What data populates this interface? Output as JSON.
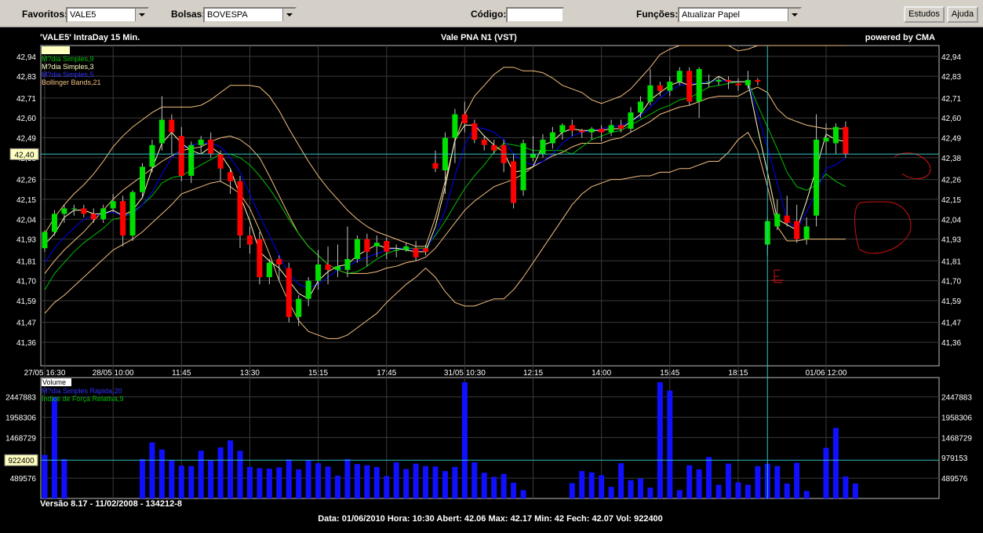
{
  "toolbar": {
    "favoritos_label": "Favoritos:",
    "favoritos_value": "VALE5",
    "bolsas_label": "Bolsas:",
    "bolsas_value": "BOVESPA",
    "codigo_label": "Código:",
    "codigo_value": "",
    "funcoes_label": "Funções:",
    "funcoes_value": "Atualizar Papel",
    "estudos_label": "Estudos",
    "ajuda_label": "Ajuda"
  },
  "header": {
    "title_left": "'VALE5'  IntraDay 15 Min.",
    "title_center": "Vale PNA     N1 (VST)",
    "powered": "powered by CMA"
  },
  "legend": {
    "box": "",
    "ma9": "M?dia Simples,9",
    "ma3": "M?dia Simples,3",
    "ma_blue": "M?dia Simples,5",
    "bollinger": "Bollinger Bands,21"
  },
  "volume_legend": {
    "volume": "Volume",
    "blue": "M?dia Simples Rapida,20",
    "green": "Índice de Força Relativa,9"
  },
  "footer": {
    "version": "Versão 8.17 - 11/02/2008 - 134212-8",
    "status": "Data: 01/06/2010  Hora: 10:30  Abert: 42.06  Max:   42.17  Min:   42  Fech:  42.07  Vol: 922400"
  },
  "colors": {
    "up": "#00e000",
    "down": "#ff0000",
    "ma9": "#00c000",
    "ma3": "#ffffc0",
    "ma5": "#0000ff",
    "bollinger": "#f4c080",
    "cursor": "#30c0c0",
    "volume": "#1010ff"
  },
  "chart_data": {
    "type": "candlestick",
    "price_axis_left": [
      "42,94",
      "42,83",
      "42,71",
      "42,60",
      "42,49",
      "42,38",
      "42,26",
      "42,15",
      "42,04",
      "41,93",
      "41,81",
      "41,70",
      "41,59",
      "41,47",
      "41,36"
    ],
    "price_axis_right": [
      "42,94",
      "42,83",
      "42,71",
      "42,60",
      "42,49",
      "42,38",
      "42,26",
      "42,15",
      "42,04",
      "41,93",
      "41,81",
      "41,70",
      "41,59",
      "41,47",
      "41,36"
    ],
    "price_cursor_label": "42,40",
    "price_cursor_value": 42.4,
    "ylim": [
      41.23,
      43.0
    ],
    "x_labels": [
      {
        "label": "27/05 16:30",
        "i": 0
      },
      {
        "label": "28/05 10:00",
        "i": 7
      },
      {
        "label": "11:45",
        "i": 14
      },
      {
        "label": "13:30",
        "i": 21
      },
      {
        "label": "15:15",
        "i": 28
      },
      {
        "label": "17:45",
        "i": 35
      },
      {
        "label": "31/05 10:30",
        "i": 43
      },
      {
        "label": "12:15",
        "i": 50
      },
      {
        "label": "14:00",
        "i": 57
      },
      {
        "label": "15:45",
        "i": 64
      },
      {
        "label": "18:15",
        "i": 71
      },
      {
        "label": "01/06 12:00",
        "i": 80
      }
    ],
    "candles": [
      [
        41.88,
        41.97,
        41.86,
        41.98
      ],
      [
        41.97,
        42.07,
        41.95,
        42.09
      ],
      [
        42.07,
        42.1,
        42.02,
        42.12
      ],
      [
        42.1,
        42.1,
        42.06,
        42.12
      ],
      [
        42.1,
        42.07,
        42.05,
        42.12
      ],
      [
        42.07,
        42.04,
        42.02,
        42.1
      ],
      [
        42.04,
        42.1,
        42.02,
        42.12
      ],
      [
        42.1,
        42.14,
        42.08,
        42.18
      ],
      [
        42.14,
        41.95,
        41.89,
        42.17
      ],
      [
        41.95,
        42.19,
        41.92,
        42.2
      ],
      [
        42.19,
        42.33,
        42.16,
        42.35
      ],
      [
        42.33,
        42.45,
        42.3,
        42.48
      ],
      [
        42.46,
        42.59,
        42.42,
        42.72
      ],
      [
        42.59,
        42.52,
        42.4,
        42.62
      ],
      [
        42.5,
        42.28,
        42.25,
        42.55
      ],
      [
        42.28,
        42.45,
        42.24,
        42.47
      ],
      [
        42.45,
        42.48,
        42.4,
        42.5
      ],
      [
        42.48,
        42.4,
        42.38,
        42.52
      ],
      [
        42.4,
        42.32,
        42.25,
        42.42
      ],
      [
        42.3,
        42.25,
        42.18,
        42.32
      ],
      [
        42.25,
        41.95,
        41.88,
        42.28
      ],
      [
        41.95,
        41.9,
        41.85,
        42.0
      ],
      [
        41.93,
        41.72,
        41.68,
        41.97
      ],
      [
        41.72,
        41.8,
        41.68,
        41.82
      ],
      [
        41.82,
        41.79,
        41.7,
        41.84
      ],
      [
        41.77,
        41.5,
        41.47,
        41.8
      ],
      [
        41.5,
        41.6,
        41.45,
        41.62
      ],
      [
        41.6,
        41.7,
        41.56,
        41.72
      ],
      [
        41.7,
        41.79,
        41.65,
        41.87
      ],
      [
        41.79,
        41.76,
        41.68,
        41.89
      ],
      [
        41.76,
        41.78,
        41.72,
        41.9
      ],
      [
        41.76,
        41.82,
        41.72,
        42.0
      ],
      [
        41.82,
        41.93,
        41.8,
        41.95
      ],
      [
        41.93,
        41.86,
        41.78,
        41.96
      ],
      [
        41.89,
        41.91,
        41.83,
        41.95
      ],
      [
        41.92,
        41.86,
        41.82,
        41.94
      ],
      [
        41.87,
        41.87,
        41.83,
        41.9
      ],
      [
        41.87,
        41.89,
        41.86,
        41.91
      ],
      [
        41.88,
        41.83,
        41.81,
        41.92
      ],
      [
        41.88,
        41.86,
        41.84,
        41.9
      ],
      [
        42.35,
        42.32,
        42.3,
        42.42
      ],
      [
        42.31,
        42.49,
        42.18,
        42.52
      ],
      [
        42.49,
        42.62,
        42.35,
        42.65
      ],
      [
        42.62,
        42.57,
        42.52,
        42.69
      ],
      [
        42.57,
        42.48,
        42.46,
        42.59
      ],
      [
        42.48,
        42.45,
        42.42,
        42.5
      ],
      [
        42.45,
        42.42,
        42.4,
        42.48
      ],
      [
        42.45,
        42.35,
        42.3,
        42.48
      ],
      [
        42.36,
        42.13,
        42.1,
        42.4
      ],
      [
        42.2,
        42.46,
        42.17,
        42.48
      ],
      [
        42.38,
        42.4,
        42.36,
        42.5
      ],
      [
        42.4,
        42.48,
        42.38,
        42.51
      ],
      [
        42.46,
        42.52,
        42.43,
        42.55
      ],
      [
        42.52,
        42.56,
        42.48,
        42.57
      ],
      [
        42.56,
        42.53,
        42.5,
        42.59
      ],
      [
        42.53,
        42.52,
        42.49,
        42.54
      ],
      [
        42.52,
        42.54,
        42.48,
        42.55
      ],
      [
        42.54,
        42.52,
        42.47,
        42.56
      ],
      [
        42.52,
        42.56,
        42.5,
        42.59
      ],
      [
        42.56,
        42.54,
        42.52,
        42.59
      ],
      [
        42.54,
        42.63,
        42.52,
        42.66
      ],
      [
        42.63,
        42.69,
        42.6,
        42.72
      ],
      [
        42.69,
        42.78,
        42.67,
        42.87
      ],
      [
        42.78,
        42.75,
        42.72,
        42.8
      ],
      [
        42.75,
        42.8,
        42.72,
        42.83
      ],
      [
        42.8,
        42.86,
        42.78,
        42.88
      ],
      [
        42.86,
        42.69,
        42.67,
        42.88
      ],
      [
        42.69,
        42.87,
        42.6,
        42.88
      ],
      [
        42.8,
        42.8,
        42.77,
        42.84
      ],
      [
        42.8,
        42.81,
        42.78,
        42.83
      ],
      [
        42.81,
        42.8,
        42.76,
        42.83
      ],
      [
        42.79,
        42.78,
        42.75,
        42.82
      ],
      [
        42.78,
        42.81,
        42.76,
        42.86
      ],
      [
        42.81,
        42.8,
        42.78,
        42.82
      ],
      [
        41.9,
        42.03,
        41.84,
        42.05
      ],
      [
        42.0,
        42.07,
        41.98,
        42.15
      ],
      [
        42.06,
        42.02,
        42.0,
        42.17
      ],
      [
        42.03,
        41.93,
        41.91,
        42.12
      ],
      [
        41.93,
        42.0,
        41.9,
        42.05
      ],
      [
        42.06,
        42.48,
        42.0,
        42.62
      ],
      [
        42.47,
        42.49,
        42.4,
        42.57
      ],
      [
        42.46,
        42.55,
        42.4,
        42.57
      ],
      [
        42.55,
        42.4,
        42.38,
        42.58
      ]
    ],
    "ma9": [
      41.65,
      41.74,
      41.8,
      41.86,
      41.91,
      41.95,
      41.99,
      42.04,
      42.05,
      42.08,
      42.12,
      42.17,
      42.24,
      42.27,
      42.28,
      42.31,
      42.34,
      42.37,
      42.4,
      42.4,
      42.38,
      42.34,
      42.28,
      42.21,
      42.13,
      42.04,
      41.96,
      41.89,
      41.84,
      41.79,
      41.76,
      41.74,
      41.75,
      41.78,
      41.82,
      41.85,
      41.87,
      41.88,
      41.88,
      41.88,
      41.95,
      42.03,
      42.12,
      42.21,
      42.28,
      42.34,
      42.41,
      42.46,
      42.45,
      42.44,
      42.42,
      42.42,
      42.42,
      42.42,
      42.4,
      42.44,
      42.48,
      42.5,
      42.52,
      42.53,
      42.56,
      42.59,
      42.62,
      42.65,
      42.67,
      42.7,
      42.71,
      42.74,
      42.77,
      42.78,
      42.79,
      42.8,
      42.8,
      42.67,
      42.55,
      42.43,
      42.3,
      42.22,
      42.2,
      42.23,
      42.29,
      42.25,
      42.22
    ],
    "ma3": [
      41.9,
      41.96,
      42.05,
      42.09,
      42.09,
      42.07,
      42.07,
      42.09,
      42.06,
      42.09,
      42.16,
      42.32,
      42.46,
      42.52,
      42.46,
      42.42,
      42.4,
      42.44,
      42.4,
      42.32,
      42.17,
      42.03,
      41.86,
      41.81,
      41.77,
      41.7,
      41.63,
      41.6,
      41.7,
      41.75,
      41.78,
      41.79,
      41.84,
      41.87,
      41.9,
      41.88,
      41.88,
      41.87,
      41.86,
      41.86,
      42.0,
      42.22,
      42.48,
      42.56,
      42.56,
      42.5,
      42.45,
      42.41,
      42.3,
      42.31,
      42.33,
      42.45,
      42.47,
      42.52,
      42.54,
      42.53,
      42.53,
      42.53,
      42.54,
      42.54,
      42.58,
      42.62,
      42.7,
      42.74,
      42.78,
      42.8,
      42.78,
      42.79,
      42.79,
      42.83,
      42.8,
      42.8,
      42.8,
      42.54,
      42.3,
      42.04,
      42.01,
      41.98,
      42.14,
      42.32,
      42.51,
      42.48,
      42.47
    ],
    "ma5": [
      41.8,
      41.88,
      41.94,
      41.99,
      42.04,
      42.06,
      42.07,
      42.08,
      42.06,
      42.07,
      42.12,
      42.19,
      42.29,
      42.38,
      42.43,
      42.45,
      42.46,
      42.46,
      42.44,
      42.38,
      42.3,
      42.18,
      42.06,
      41.95,
      41.84,
      41.74,
      41.68,
      41.66,
      41.68,
      41.72,
      41.76,
      41.78,
      41.81,
      41.83,
      41.85,
      41.87,
      41.88,
      41.88,
      41.87,
      41.87,
      41.96,
      42.09,
      42.28,
      42.45,
      42.55,
      42.54,
      42.52,
      42.48,
      42.4,
      42.36,
      42.34,
      42.36,
      42.4,
      42.46,
      42.5,
      42.52,
      42.53,
      42.54,
      42.55,
      42.56,
      42.58,
      42.61,
      42.66,
      42.71,
      42.75,
      42.78,
      42.79,
      42.79,
      42.8,
      42.81,
      42.8,
      42.8,
      42.8,
      42.62,
      42.44,
      42.24,
      42.04,
      41.98,
      42.08,
      42.19,
      42.32,
      42.34,
      42.38
    ],
    "bb_upper": [
      41.96,
      42.05,
      42.12,
      42.18,
      42.23,
      42.29,
      42.36,
      42.44,
      42.5,
      42.55,
      42.59,
      42.63,
      42.66,
      42.66,
      42.66,
      42.66,
      42.67,
      42.7,
      42.74,
      42.78,
      42.78,
      42.78,
      42.77,
      42.72,
      42.64,
      42.54,
      42.45,
      42.36,
      42.28,
      42.21,
      42.15,
      42.09,
      42.04,
      42.0,
      41.97,
      41.95,
      41.93,
      41.91,
      41.89,
      41.89,
      42.05,
      42.25,
      42.47,
      42.62,
      42.72,
      42.78,
      42.84,
      42.88,
      42.88,
      42.86,
      42.86,
      42.85,
      42.82,
      42.78,
      42.76,
      42.74,
      42.7,
      42.68,
      42.7,
      42.72,
      42.76,
      42.82,
      42.88,
      42.95,
      42.98,
      43.0,
      43.02,
      43.04,
      43.06,
      43.08,
      43.02,
      42.97,
      42.98,
      43.12,
      43.25,
      43.3,
      43.3,
      43.3,
      43.3,
      43.3,
      43.3,
      43.3,
      43.3
    ],
    "bb_lower": [
      41.52,
      41.58,
      41.62,
      41.67,
      41.72,
      41.77,
      41.82,
      41.87,
      41.9,
      41.93,
      41.97,
      42.02,
      42.07,
      42.12,
      42.18,
      42.2,
      42.22,
      42.24,
      42.25,
      42.22,
      42.18,
      42.1,
      41.98,
      41.85,
      41.7,
      41.58,
      41.48,
      41.42,
      41.4,
      41.38,
      41.38,
      41.4,
      41.44,
      41.48,
      41.52,
      41.58,
      41.63,
      41.68,
      41.72,
      41.77,
      41.72,
      41.64,
      41.58,
      41.56,
      41.56,
      41.58,
      41.6,
      41.6,
      41.65,
      41.72,
      41.8,
      41.88,
      41.96,
      42.04,
      42.12,
      42.18,
      42.22,
      42.24,
      42.26,
      42.26,
      42.27,
      42.28,
      42.28,
      42.3,
      42.3,
      42.32,
      42.32,
      42.34,
      42.36,
      42.36,
      42.41,
      42.48,
      42.52,
      42.42,
      42.22,
      42.0,
      41.92,
      41.92,
      41.93,
      41.93,
      41.93,
      41.93,
      41.93
    ],
    "bb_mid": [
      41.74,
      41.81,
      41.87,
      41.92,
      41.97,
      42.03,
      42.09,
      42.15,
      42.2,
      42.24,
      42.28,
      42.32,
      42.36,
      42.39,
      42.42,
      42.43,
      42.44,
      42.47,
      42.49,
      42.5,
      42.48,
      42.44,
      42.38,
      42.28,
      42.17,
      42.06,
      41.96,
      41.89,
      41.84,
      41.79,
      41.76,
      41.74,
      41.74,
      41.74,
      41.75,
      41.77,
      41.78,
      41.8,
      41.81,
      41.83,
      41.88,
      41.95,
      42.02,
      42.09,
      42.14,
      42.18,
      42.22,
      42.24,
      42.26,
      42.29,
      42.33,
      42.36,
      42.39,
      42.41,
      42.44,
      42.46,
      42.46,
      42.46,
      42.48,
      42.49,
      42.52,
      42.55,
      42.58,
      42.62,
      42.64,
      42.66,
      42.67,
      42.69,
      42.71,
      42.72,
      42.72,
      42.72,
      42.75,
      42.77,
      42.74,
      42.65,
      42.6,
      42.58,
      42.56,
      42.55,
      42.54,
      42.54,
      42.54
    ],
    "volume_axis_left": [
      "2447883",
      "1958306",
      "1468729",
      "489576"
    ],
    "volume_axis_right": [
      "2447883",
      "1958306",
      "1468729",
      "979153",
      "489576"
    ],
    "volume_cursor_label": "922400",
    "volume_cursor_value": 922400,
    "volume_max": 2800000,
    "volume": [
      1050000,
      2440000,
      950000,
      0,
      0,
      0,
      0,
      0,
      0,
      0,
      950000,
      1350000,
      1180000,
      920000,
      790000,
      780000,
      1150000,
      930000,
      1230000,
      1400000,
      1150000,
      760000,
      730000,
      720000,
      750000,
      940000,
      700000,
      930000,
      850000,
      770000,
      550000,
      950000,
      830000,
      800000,
      760000,
      540000,
      870000,
      710000,
      840000,
      780000,
      770000,
      660000,
      760000,
      2800000,
      870000,
      620000,
      520000,
      590000,
      380000,
      200000,
      0,
      0,
      0,
      0,
      370000,
      660000,
      630000,
      560000,
      280000,
      850000,
      440000,
      480000,
      260000,
      2800000,
      2600000,
      200000,
      800000,
      700000,
      1000000,
      330000,
      840000,
      390000,
      330000,
      780000,
      840000,
      780000,
      360000,
      860000,
      180000,
      0,
      1220000,
      1700000,
      530000,
      360000
    ]
  }
}
